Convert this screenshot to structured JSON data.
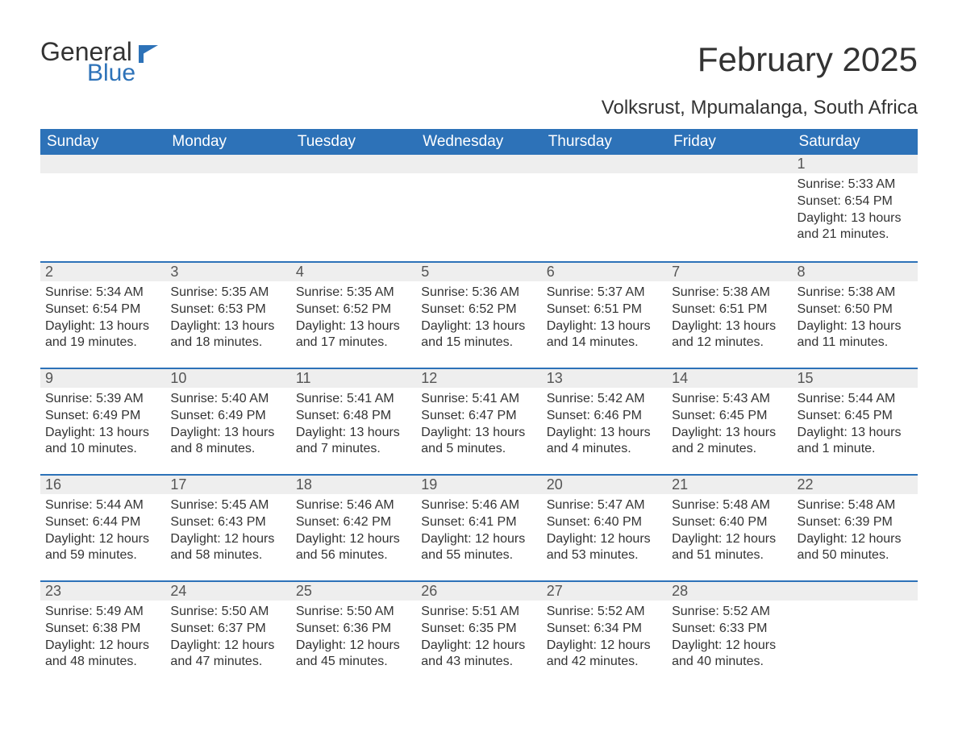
{
  "brand": {
    "word1": "General",
    "word2": "Blue",
    "logo_color": "#2d72b8",
    "text_color": "#333333"
  },
  "title": "February 2025",
  "location": "Volksrust, Mpumalanga, South Africa",
  "colors": {
    "header_bg": "#2d72b8",
    "header_text": "#ffffff",
    "daynum_bg": "#eeeeee",
    "row_border": "#2d72b8",
    "body_text": "#333333",
    "background": "#ffffff"
  },
  "typography": {
    "title_fontsize": 42,
    "location_fontsize": 24,
    "weekday_fontsize": 19,
    "daynum_fontsize": 18,
    "body_fontsize": 16
  },
  "weekdays": [
    "Sunday",
    "Monday",
    "Tuesday",
    "Wednesday",
    "Thursday",
    "Friday",
    "Saturday"
  ],
  "weeks": [
    [
      null,
      null,
      null,
      null,
      null,
      null,
      {
        "n": "1",
        "sr": "Sunrise: 5:33 AM",
        "ss": "Sunset: 6:54 PM",
        "dl": "Daylight: 13 hours and 21 minutes."
      }
    ],
    [
      {
        "n": "2",
        "sr": "Sunrise: 5:34 AM",
        "ss": "Sunset: 6:54 PM",
        "dl": "Daylight: 13 hours and 19 minutes."
      },
      {
        "n": "3",
        "sr": "Sunrise: 5:35 AM",
        "ss": "Sunset: 6:53 PM",
        "dl": "Daylight: 13 hours and 18 minutes."
      },
      {
        "n": "4",
        "sr": "Sunrise: 5:35 AM",
        "ss": "Sunset: 6:52 PM",
        "dl": "Daylight: 13 hours and 17 minutes."
      },
      {
        "n": "5",
        "sr": "Sunrise: 5:36 AM",
        "ss": "Sunset: 6:52 PM",
        "dl": "Daylight: 13 hours and 15 minutes."
      },
      {
        "n": "6",
        "sr": "Sunrise: 5:37 AM",
        "ss": "Sunset: 6:51 PM",
        "dl": "Daylight: 13 hours and 14 minutes."
      },
      {
        "n": "7",
        "sr": "Sunrise: 5:38 AM",
        "ss": "Sunset: 6:51 PM",
        "dl": "Daylight: 13 hours and 12 minutes."
      },
      {
        "n": "8",
        "sr": "Sunrise: 5:38 AM",
        "ss": "Sunset: 6:50 PM",
        "dl": "Daylight: 13 hours and 11 minutes."
      }
    ],
    [
      {
        "n": "9",
        "sr": "Sunrise: 5:39 AM",
        "ss": "Sunset: 6:49 PM",
        "dl": "Daylight: 13 hours and 10 minutes."
      },
      {
        "n": "10",
        "sr": "Sunrise: 5:40 AM",
        "ss": "Sunset: 6:49 PM",
        "dl": "Daylight: 13 hours and 8 minutes."
      },
      {
        "n": "11",
        "sr": "Sunrise: 5:41 AM",
        "ss": "Sunset: 6:48 PM",
        "dl": "Daylight: 13 hours and 7 minutes."
      },
      {
        "n": "12",
        "sr": "Sunrise: 5:41 AM",
        "ss": "Sunset: 6:47 PM",
        "dl": "Daylight: 13 hours and 5 minutes."
      },
      {
        "n": "13",
        "sr": "Sunrise: 5:42 AM",
        "ss": "Sunset: 6:46 PM",
        "dl": "Daylight: 13 hours and 4 minutes."
      },
      {
        "n": "14",
        "sr": "Sunrise: 5:43 AM",
        "ss": "Sunset: 6:45 PM",
        "dl": "Daylight: 13 hours and 2 minutes."
      },
      {
        "n": "15",
        "sr": "Sunrise: 5:44 AM",
        "ss": "Sunset: 6:45 PM",
        "dl": "Daylight: 13 hours and 1 minute."
      }
    ],
    [
      {
        "n": "16",
        "sr": "Sunrise: 5:44 AM",
        "ss": "Sunset: 6:44 PM",
        "dl": "Daylight: 12 hours and 59 minutes."
      },
      {
        "n": "17",
        "sr": "Sunrise: 5:45 AM",
        "ss": "Sunset: 6:43 PM",
        "dl": "Daylight: 12 hours and 58 minutes."
      },
      {
        "n": "18",
        "sr": "Sunrise: 5:46 AM",
        "ss": "Sunset: 6:42 PM",
        "dl": "Daylight: 12 hours and 56 minutes."
      },
      {
        "n": "19",
        "sr": "Sunrise: 5:46 AM",
        "ss": "Sunset: 6:41 PM",
        "dl": "Daylight: 12 hours and 55 minutes."
      },
      {
        "n": "20",
        "sr": "Sunrise: 5:47 AM",
        "ss": "Sunset: 6:40 PM",
        "dl": "Daylight: 12 hours and 53 minutes."
      },
      {
        "n": "21",
        "sr": "Sunrise: 5:48 AM",
        "ss": "Sunset: 6:40 PM",
        "dl": "Daylight: 12 hours and 51 minutes."
      },
      {
        "n": "22",
        "sr": "Sunrise: 5:48 AM",
        "ss": "Sunset: 6:39 PM",
        "dl": "Daylight: 12 hours and 50 minutes."
      }
    ],
    [
      {
        "n": "23",
        "sr": "Sunrise: 5:49 AM",
        "ss": "Sunset: 6:38 PM",
        "dl": "Daylight: 12 hours and 48 minutes."
      },
      {
        "n": "24",
        "sr": "Sunrise: 5:50 AM",
        "ss": "Sunset: 6:37 PM",
        "dl": "Daylight: 12 hours and 47 minutes."
      },
      {
        "n": "25",
        "sr": "Sunrise: 5:50 AM",
        "ss": "Sunset: 6:36 PM",
        "dl": "Daylight: 12 hours and 45 minutes."
      },
      {
        "n": "26",
        "sr": "Sunrise: 5:51 AM",
        "ss": "Sunset: 6:35 PM",
        "dl": "Daylight: 12 hours and 43 minutes."
      },
      {
        "n": "27",
        "sr": "Sunrise: 5:52 AM",
        "ss": "Sunset: 6:34 PM",
        "dl": "Daylight: 12 hours and 42 minutes."
      },
      {
        "n": "28",
        "sr": "Sunrise: 5:52 AM",
        "ss": "Sunset: 6:33 PM",
        "dl": "Daylight: 12 hours and 40 minutes."
      },
      null
    ]
  ]
}
